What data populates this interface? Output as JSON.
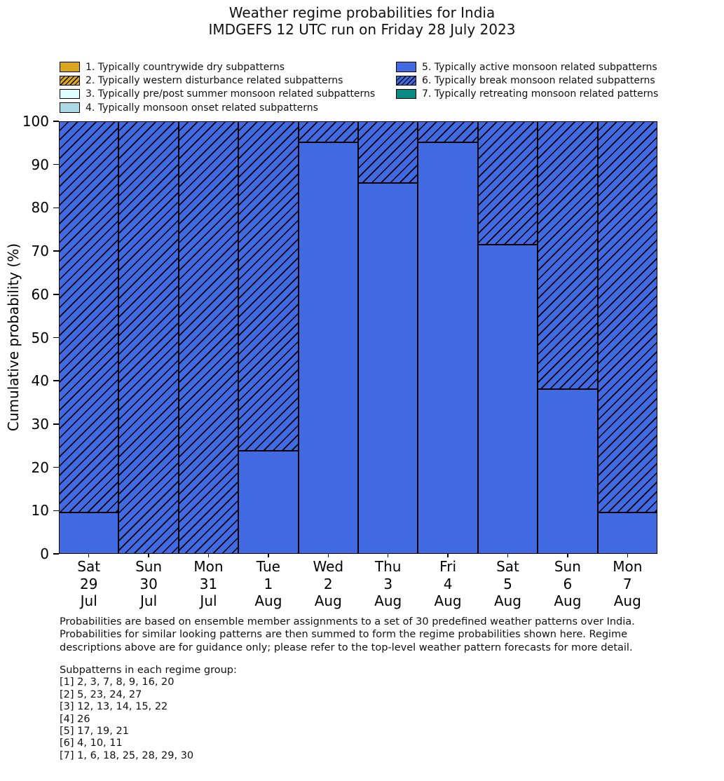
{
  "title": {
    "line1": "Weather regime probabilities for India",
    "line2": "IMDGEFS 12 UTC run on Friday 28 July 2023"
  },
  "colors": {
    "gold": "#DAA520",
    "pre_post": "#E0FFFF",
    "onset": "#ADD8E6",
    "blue": "#4169E1",
    "teal": "#0A8A85",
    "hatch_line": "#000000"
  },
  "legend": {
    "columns": [
      {
        "items": [
          {
            "label": "1. Typically countrywide dry subpatterns",
            "color": "#DAA520",
            "hatch": false
          },
          {
            "label": "2. Typically western disturbance related subpatterns",
            "color": "#DAA520",
            "hatch": true
          },
          {
            "label": "3. Typically pre/post summer monsoon related subpatterns",
            "color": "#E0FFFF",
            "hatch": false
          },
          {
            "label": "4. Typically monsoon onset related subpatterns",
            "color": "#ADD8E6",
            "hatch": false
          }
        ]
      },
      {
        "items": [
          {
            "label": "5. Typically active monsoon related subpatterns",
            "color": "#4169E1",
            "hatch": false
          },
          {
            "label": "6. Typically break monsoon related subpatterns",
            "color": "#4169E1",
            "hatch": true
          },
          {
            "label": "7. Typically retreating monsoon related patterns",
            "color": "#0A8A85",
            "hatch": false
          }
        ]
      }
    ]
  },
  "chart_data": {
    "type": "bar",
    "stacked": true,
    "title": "Weather regime probabilities for India — IMDGEFS 12 UTC run on Friday 28 July 2023",
    "xlabel": "",
    "ylabel": "Cumulative probability (%)",
    "ylim": [
      0,
      100
    ],
    "yticks": [
      0,
      10,
      20,
      30,
      40,
      50,
      60,
      70,
      80,
      90,
      100
    ],
    "grid": false,
    "legend_position": "top",
    "categories": [
      [
        "Sat",
        "29",
        "Jul"
      ],
      [
        "Sun",
        "30",
        "Jul"
      ],
      [
        "Mon",
        "31",
        "Jul"
      ],
      [
        "Tue",
        "1",
        "Aug"
      ],
      [
        "Wed",
        "2",
        "Aug"
      ],
      [
        "Thu",
        "3",
        "Aug"
      ],
      [
        "Fri",
        "4",
        "Aug"
      ],
      [
        "Sat",
        "5",
        "Aug"
      ],
      [
        "Sun",
        "6",
        "Aug"
      ],
      [
        "Mon",
        "7",
        "Aug"
      ]
    ],
    "series": [
      {
        "name": "5. Typically active monsoon related subpatterns",
        "style": "solid",
        "color": "#4169E1",
        "values": [
          9.5,
          0,
          0,
          23.8,
          95.2,
          85.7,
          95.2,
          71.4,
          38.1,
          9.5
        ]
      },
      {
        "name": "6. Typically break monsoon related subpatterns",
        "style": "hatched",
        "color": "#4169E1",
        "values": [
          90.5,
          100,
          100,
          76.2,
          4.8,
          14.3,
          4.8,
          28.6,
          61.9,
          90.5
        ]
      }
    ]
  },
  "footer": {
    "paragraph": [
      "Probabilities are based on ensemble member assignments to a set of 30 predefined weather patterns over India.",
      "Probabilities for similar looking patterns are then summed to form the regime probabilities shown here. Regime",
      "descriptions above are for guidance only; please refer to the top-level weather pattern forecasts for more detail."
    ],
    "subpatterns_header": "Subpatterns in each regime group:",
    "subpatterns": [
      "[1] 2, 3, 7, 8, 9, 16, 20",
      "[2] 5, 23, 24, 27",
      "[3] 12, 13, 14, 15, 22",
      "[4] 26",
      "[5] 17, 19, 21",
      "[6] 4, 10, 11",
      "[7] 1, 6, 18, 25, 28, 29, 30"
    ]
  }
}
